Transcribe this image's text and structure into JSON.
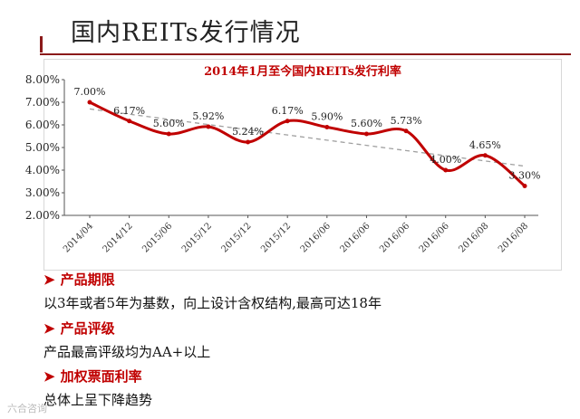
{
  "slide": {
    "title": "国内REITs发行情况",
    "accent_color": "#c00000"
  },
  "chart_data": {
    "type": "line",
    "title": "2014年1月至今国内REITs发行利率",
    "categories": [
      "2014/04",
      "2014/12",
      "2015/06",
      "2015/12",
      "2015/12",
      "2015/12",
      "2016/06",
      "2016/06",
      "2016/06",
      "2016/06",
      "2016/08",
      "2016/08"
    ],
    "series": [
      {
        "values": [
          7.0,
          6.17,
          5.6,
          5.92,
          5.24,
          6.17,
          5.9,
          5.6,
          5.73,
          4.0,
          4.65,
          3.3
        ],
        "labels": [
          "7.00%",
          "6.17%",
          "5.60%",
          "5.92%",
          "5.24%",
          "6.17%",
          "5.90%",
          "5.60%",
          "5.73%",
          "4.00%",
          "4.65%",
          "3.30%"
        ],
        "color": "#c00000"
      }
    ],
    "trendline": {
      "color": "#a0a0a0",
      "style": "dashed"
    },
    "y_ticks": [
      "2.00%",
      "3.00%",
      "4.00%",
      "5.00%",
      "6.00%",
      "7.00%",
      "8.00%"
    ],
    "ylim": [
      2,
      8
    ],
    "grid": false,
    "xlabel": "",
    "ylabel": ""
  },
  "bullets": [
    {
      "heading": "产品期限",
      "text": "以3年或者5年为基数，向上设计含权结构,最高可达18年"
    },
    {
      "heading": "产品评级",
      "text": "产品最高评级均为AA+以上"
    },
    {
      "heading": "加权票面利率",
      "text": "总体上呈下降趋势"
    }
  ],
  "watermark": "六合咨询"
}
